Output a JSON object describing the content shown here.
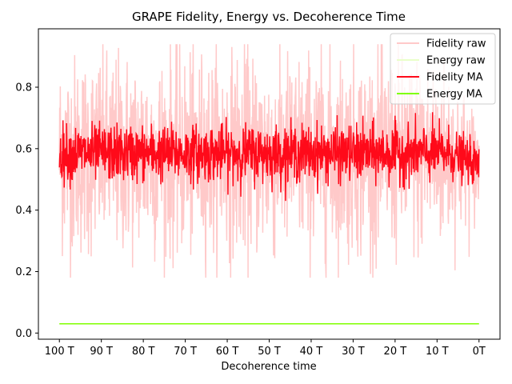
{
  "chart_data": {
    "type": "line",
    "title": "GRAPE Fidelity, Energy vs. Decoherence Time",
    "xlabel": "Decoherence time",
    "ylabel": "",
    "x_ticks": [
      "100 T",
      "90 T",
      "80 T",
      "70 T",
      "60 T",
      "50 T",
      "40 T",
      "30 T",
      "20 T",
      "10 T",
      "0T"
    ],
    "y_ticks": [
      "0.0",
      "0.2",
      "0.4",
      "0.6",
      "0.8"
    ],
    "ylim": [
      -0.02,
      0.99
    ],
    "xlim": [
      105,
      -5
    ],
    "grid": false,
    "legend_position": "top-right",
    "series": [
      {
        "name": "Fidelity raw",
        "color": "#ffc9c9",
        "style": "noisy band",
        "x_range": [
          100,
          0
        ],
        "values_summary": {
          "mean": 0.58,
          "min": 0.18,
          "max": 0.94
        }
      },
      {
        "name": "Energy raw",
        "color": "#eaffc9",
        "style": "flat line",
        "x_range": [
          100,
          0
        ],
        "values_summary": {
          "mean": 0.03,
          "min": 0.03,
          "max": 0.03
        }
      },
      {
        "name": "Fidelity MA",
        "color": "#ff0a1a",
        "style": "noisy band",
        "x_range": [
          100,
          0
        ],
        "values_summary": {
          "mean": 0.585,
          "min": 0.43,
          "max": 0.72
        }
      },
      {
        "name": "Energy MA",
        "color": "#7fff00",
        "style": "flat line",
        "x_range": [
          100,
          0
        ],
        "values_summary": {
          "mean": 0.03,
          "min": 0.03,
          "max": 0.03
        }
      }
    ]
  }
}
